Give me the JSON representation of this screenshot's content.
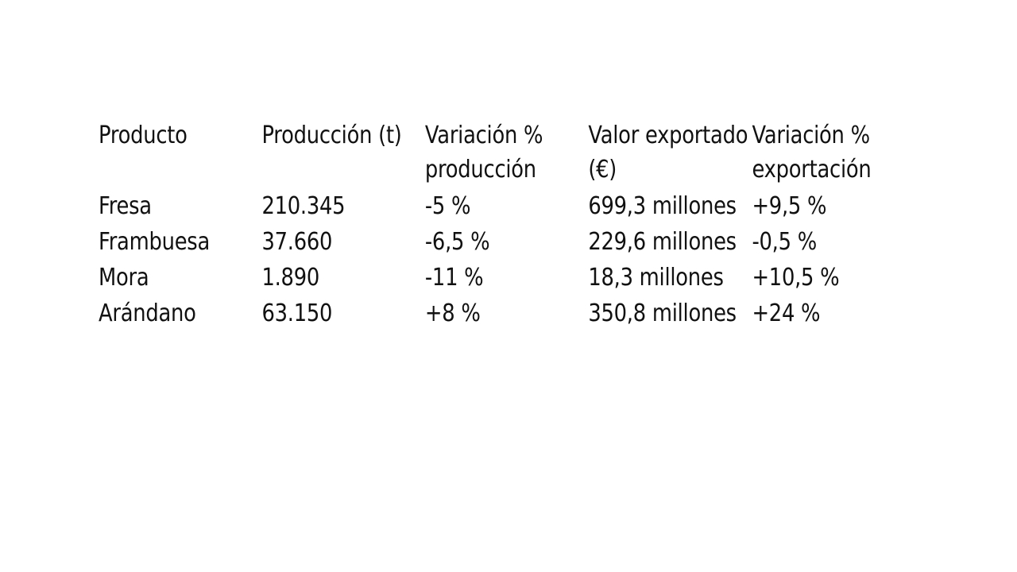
{
  "table": {
    "headers": [
      "Producto",
      "Producción (t)",
      "Variación % producción",
      "Valor exportado (€)",
      "Variación % exportación"
    ],
    "rows": [
      [
        "Fresa",
        "210.345",
        "-5 %",
        "699,3 millones",
        "+9,5 %"
      ],
      [
        "Frambuesa",
        "37.660",
        "-6,5 %",
        "229,6 millones",
        "-0,5 %"
      ],
      [
        "Mora",
        "1.890",
        "-11 %",
        "18,3 millones",
        "+10,5 %"
      ],
      [
        "Arándano",
        "63.150",
        "+8 %",
        "350,8 millones",
        "+24 %"
      ]
    ]
  }
}
